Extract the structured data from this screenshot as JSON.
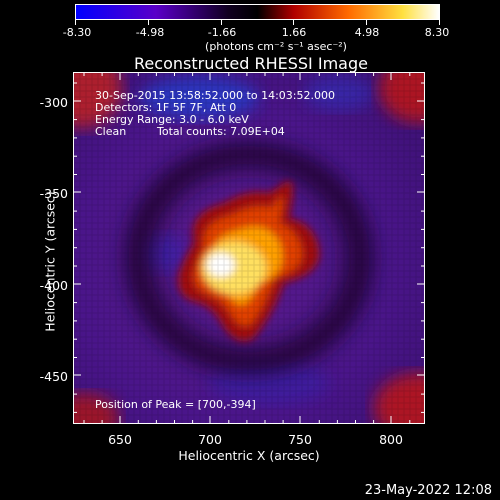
{
  "colorbar": {
    "ticks": [
      "-8.30",
      "-4.98",
      "-1.66",
      "1.66",
      "4.98",
      "8.30"
    ],
    "unit_label": "(photons cm⁻² s⁻¹ asec⁻²)",
    "range": [
      -8.3,
      8.3
    ],
    "colormap": [
      "#0000ff",
      "#5a00c8",
      "#000000",
      "#c80000",
      "#ff8c00",
      "#ffff80",
      "#ffffff"
    ]
  },
  "title": "Reconstructed RHESSI Image",
  "info": {
    "time": "30-Sep-2015 13:58:52.000 to 14:03:52.000",
    "detectors": "Detectors: 1F 5F 7F, Att 0",
    "energy": "Energy Range: 3.0 - 6.0 keV",
    "method": "Clean",
    "total_counts": "Total counts: 7.09E+04",
    "peak": "Position of Peak = [700,-394]"
  },
  "axes": {
    "xlabel": "Heliocentric X (arcsec)",
    "ylabel": "Heliocentric Y (arcsec)",
    "xticks": [
      "650",
      "700",
      "750",
      "800"
    ],
    "yticks": [
      "-300",
      "-350",
      "-400",
      "-450"
    ],
    "xrange": [
      625,
      820
    ],
    "yrange": [
      -280,
      -475
    ]
  },
  "timestamp": "23-May-2022 12:08"
}
